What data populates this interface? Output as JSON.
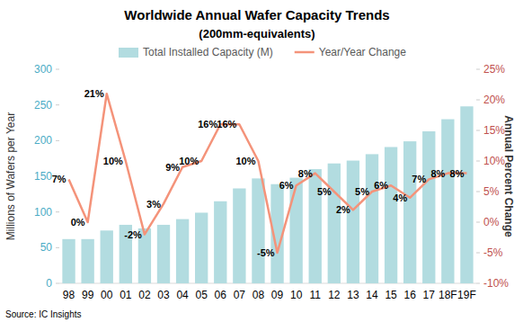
{
  "chart_data": {
    "type": "bar",
    "title": "Worldwide Annual Wafer Capacity Trends",
    "subtitle": "(200mm-equivalents)",
    "y_label": "Millions of Wafers per Year",
    "y2_label": "Annual Percent Change",
    "source": "Source:  IC Insights",
    "categories": [
      "98",
      "99",
      "00",
      "01",
      "02",
      "03",
      "04",
      "05",
      "06",
      "07",
      "08",
      "09",
      "10",
      "11",
      "12",
      "13",
      "14",
      "15",
      "16",
      "17",
      "18F",
      "19F"
    ],
    "series": [
      {
        "name": "Total Installed Capacity (M)",
        "type": "bar",
        "color": "#b2dce0",
        "values": [
          62,
          62,
          74,
          82,
          77,
          82,
          90,
          99,
          115,
          133,
          147,
          139,
          148,
          160,
          168,
          172,
          181,
          191,
          199,
          213,
          230,
          248
        ]
      },
      {
        "name": "Year/Year Change",
        "type": "line",
        "axis": "y2",
        "color": "#f4937a",
        "line_style": "solid",
        "data_labels": true,
        "values": [
          7,
          0,
          21,
          10,
          -2,
          3,
          9,
          10,
          16,
          16,
          10,
          -5,
          6,
          8,
          5,
          2,
          5,
          6,
          4,
          7,
          8,
          8
        ],
        "value_labels": [
          "7%",
          "0%",
          "21%",
          "10%",
          "-2%",
          "3%",
          "9%",
          "10%",
          "16%",
          "16%",
          "10%",
          "-5%",
          "6%",
          "8%",
          "5%",
          "2%",
          "5%",
          "6%",
          "4%",
          "7%",
          "8%",
          "8%"
        ]
      }
    ],
    "ylim": [
      0,
      300
    ],
    "yticks": [
      0,
      50,
      100,
      150,
      200,
      250,
      300
    ],
    "y2lim": [
      -10,
      25
    ],
    "y2ticks": [
      {
        "value": -10,
        "label": "-10%"
      },
      {
        "value": -5,
        "label": "-5%"
      },
      {
        "value": 0,
        "label": "0%"
      },
      {
        "value": 5,
        "label": "5%"
      },
      {
        "value": 10,
        "label": "10%"
      },
      {
        "value": 15,
        "label": "15%"
      },
      {
        "value": 20,
        "label": "20%"
      },
      {
        "value": 25,
        "label": "25%"
      }
    ],
    "grid": false,
    "legend": "top"
  }
}
